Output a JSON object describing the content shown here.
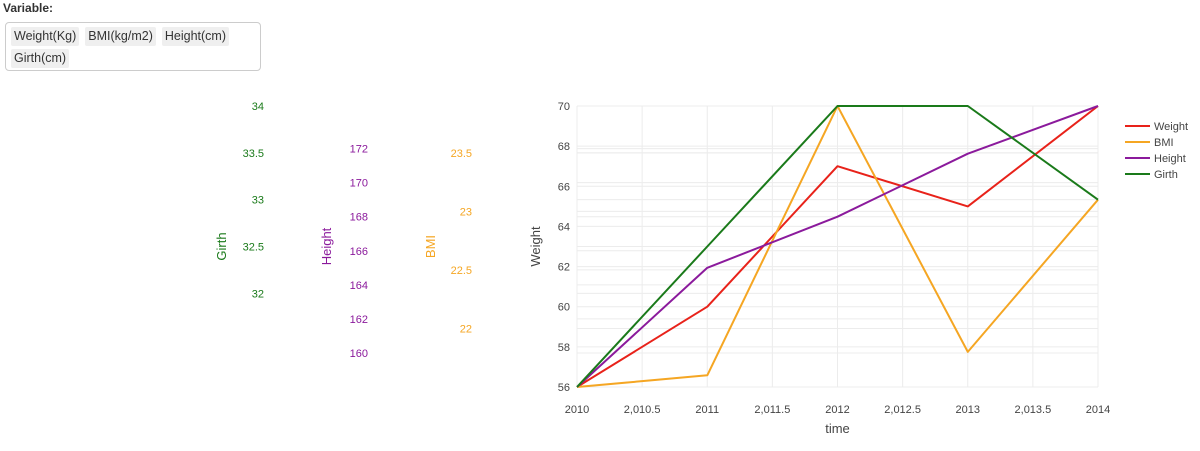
{
  "selector": {
    "label": "Variable:",
    "selected": [
      "Weight(Kg)",
      "BMI(kg/m2)",
      "Height(cm)",
      "Girth(cm)"
    ]
  },
  "chart_data": {
    "type": "line",
    "x": [
      2010,
      2011,
      2012,
      2013,
      2014
    ],
    "xlabel": "time",
    "xlim": [
      2010,
      2014
    ],
    "xticks": [
      {
        "value": 2010,
        "label": "2010"
      },
      {
        "value": 2010.5,
        "label": "2,010.5"
      },
      {
        "value": 2011,
        "label": "2011"
      },
      {
        "value": 2011.5,
        "label": "2,011.5"
      },
      {
        "value": 2012,
        "label": "2012"
      },
      {
        "value": 2012.5,
        "label": "2,012.5"
      },
      {
        "value": 2013,
        "label": "2013"
      },
      {
        "value": 2013.5,
        "label": "2,013.5"
      },
      {
        "value": 2014,
        "label": "2014"
      }
    ],
    "legend_position": "top-right",
    "series": [
      {
        "name": "Weight",
        "color": "#e8221a",
        "axis": "Weight",
        "values": [
          56,
          60,
          67,
          65,
          70
        ]
      },
      {
        "name": "BMI",
        "color": "#f5a623",
        "axis": "BMI",
        "values": [
          21.5,
          21.6,
          23.9,
          21.8,
          23.1
        ]
      },
      {
        "name": "Height",
        "color": "#8b1a9c",
        "axis": "Height",
        "values": [
          158,
          165,
          168,
          171.7,
          174.5
        ]
      },
      {
        "name": "Girth",
        "color": "#1a7a1a",
        "axis": "Girth",
        "values": [
          31,
          32.5,
          34,
          34,
          33
        ]
      }
    ],
    "axes": [
      {
        "id": "Weight",
        "title": "Weight",
        "color": "#444444",
        "range": [
          56,
          70
        ],
        "ticks": [
          "56",
          "58",
          "60",
          "62",
          "64",
          "66",
          "68",
          "70"
        ],
        "tick_values": [
          56,
          58,
          60,
          62,
          64,
          66,
          68,
          70
        ]
      },
      {
        "id": "BMI",
        "title": "BMI",
        "color": "#f5a623",
        "range": [
          21.5,
          23.9
        ],
        "ticks": [
          "22",
          "22.5",
          "23",
          "23.5"
        ],
        "tick_values": [
          22,
          22.5,
          23,
          23.5
        ]
      },
      {
        "id": "Height",
        "title": "Height",
        "color": "#8b1a9c",
        "range": [
          158,
          174.5
        ],
        "ticks": [
          "160",
          "162",
          "164",
          "166",
          "168",
          "170",
          "172"
        ],
        "tick_values": [
          160,
          162,
          164,
          166,
          168,
          170,
          172
        ]
      },
      {
        "id": "Girth",
        "title": "Girth",
        "color": "#1a7a1a",
        "range": [
          31,
          34
        ],
        "ticks": [
          "32",
          "32.5",
          "33",
          "33.5",
          "34"
        ],
        "tick_values": [
          32,
          32.5,
          33,
          33.5,
          34
        ]
      }
    ]
  }
}
